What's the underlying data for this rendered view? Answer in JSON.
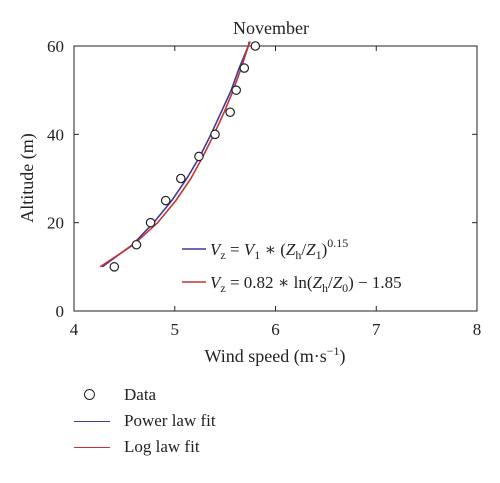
{
  "chart_data": {
    "type": "line",
    "title": "November",
    "xlabel_main": "Wind speed (m·s",
    "xlabel_sup": "−1",
    "xlabel_close": ")",
    "ylabel": "Altitude (m)",
    "xlim": [
      4,
      8
    ],
    "ylim": [
      0,
      60
    ],
    "xticks": [
      4,
      5,
      6,
      7,
      8
    ],
    "yticks": [
      0,
      20,
      40,
      60
    ],
    "grid": false,
    "series": [
      {
        "name": "Data",
        "kind": "scatter",
        "color": "#222222",
        "points": [
          [
            4.4,
            10
          ],
          [
            4.62,
            15
          ],
          [
            4.76,
            20
          ],
          [
            4.91,
            25
          ],
          [
            5.06,
            30
          ],
          [
            5.24,
            35
          ],
          [
            5.4,
            40
          ],
          [
            5.55,
            45
          ],
          [
            5.61,
            50
          ],
          [
            5.69,
            55
          ],
          [
            5.8,
            60
          ]
        ]
      },
      {
        "name": "Power law fit",
        "kind": "line",
        "color": "#3c3c9a",
        "points": [
          [
            4.28,
            10
          ],
          [
            4.58,
            15
          ],
          [
            4.79,
            20
          ],
          [
            4.97,
            25
          ],
          [
            5.12,
            30
          ],
          [
            5.25,
            35
          ],
          [
            5.36,
            40
          ],
          [
            5.46,
            45
          ],
          [
            5.56,
            50
          ],
          [
            5.64,
            55
          ],
          [
            5.73,
            60
          ],
          [
            5.74,
            61
          ]
        ]
      },
      {
        "name": "Log law fit",
        "kind": "line",
        "color": "#c83232",
        "points": [
          [
            4.26,
            10
          ],
          [
            4.59,
            15
          ],
          [
            4.83,
            20
          ],
          [
            5.01,
            25
          ],
          [
            5.16,
            30
          ],
          [
            5.28,
            35
          ],
          [
            5.39,
            40
          ],
          [
            5.49,
            45
          ],
          [
            5.58,
            50
          ],
          [
            5.66,
            55
          ],
          [
            5.73,
            60
          ],
          [
            5.75,
            61
          ]
        ]
      }
    ],
    "annotations": {
      "power": {
        "color": "#3c3c9a",
        "lhs": "V",
        "lhs_sub": "z",
        "eq": " = ",
        "v1": "V",
        "v1_sub": "1",
        "star": " ∗ (",
        "zh": "Z",
        "zh_sub": "h",
        "slash": "/",
        "z1": "Z",
        "z1_sub": "1",
        "close": ")",
        "exp": "0.15"
      },
      "log": {
        "color": "#c83232",
        "lhs": "V",
        "lhs_sub": "z",
        "eq": " = 0.82 ∗ ln(",
        "zh": "Z",
        "zh_sub": "h",
        "slash": "/",
        "z0": "Z",
        "z0_sub": "0",
        "close": ") − 1.85"
      }
    }
  }
}
